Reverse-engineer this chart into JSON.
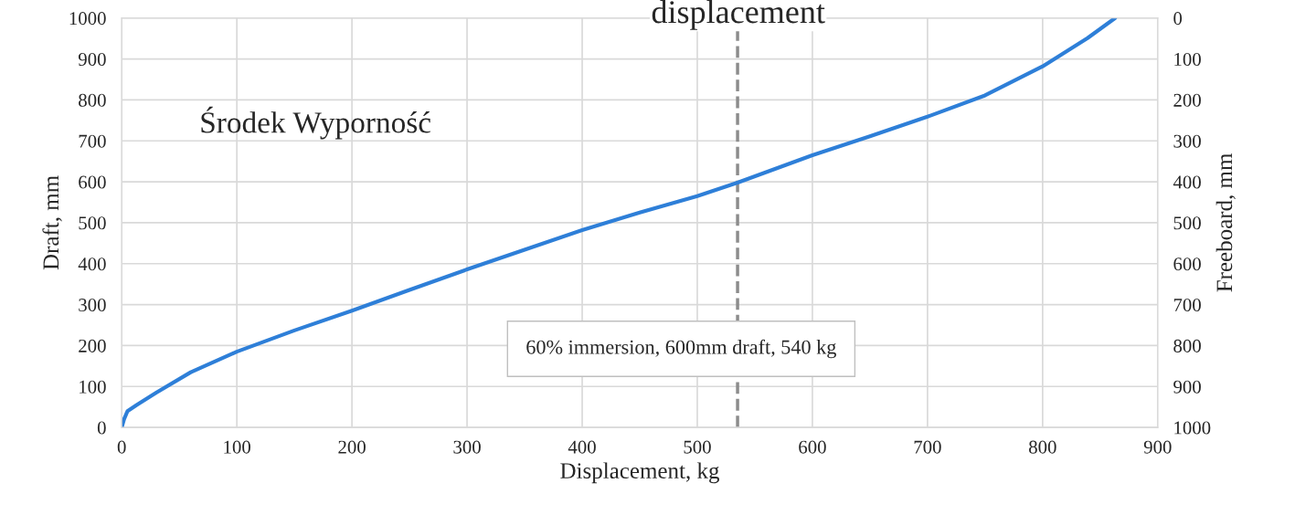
{
  "chart_data": {
    "type": "line",
    "title": "displacement",
    "xlabel": "Displacement, kg",
    "ylabel": "Draft, mm",
    "y2label": "Freeboard, mm",
    "series": [
      {
        "color": "#2e7fd8",
        "x": [
          0,
          2,
          5,
          13,
          30,
          60,
          100,
          150,
          200,
          250,
          300,
          350,
          400,
          450,
          500,
          535,
          600,
          650,
          700,
          750,
          800,
          839,
          863
        ],
        "values": [
          0,
          20,
          40,
          55,
          85,
          135,
          185,
          237,
          285,
          336,
          386,
          434,
          482,
          525,
          565,
          598,
          665,
          711,
          759,
          811,
          882,
          951,
          1000
        ]
      }
    ],
    "xlim": [
      0,
      900
    ],
    "xticks": [
      0,
      100,
      200,
      300,
      400,
      500,
      600,
      700,
      800,
      900
    ],
    "ylim": [
      0,
      1000
    ],
    "yticks": [
      0,
      100,
      200,
      300,
      400,
      500,
      600,
      700,
      800,
      900,
      1000
    ],
    "y2lim": [
      1000,
      0
    ],
    "y2ticks": [
      0,
      100,
      200,
      300,
      400,
      500,
      600,
      700,
      800,
      900,
      1000
    ],
    "ref_lines": [
      {
        "axis": "x",
        "value": 535,
        "color": "#8c8c8c",
        "line_style": "dashed"
      }
    ],
    "annotations": [
      "Środek Wyporność",
      "60% immersion, 600mm draft, 540 kg"
    ],
    "grid": true,
    "line_style": "solid",
    "marker": "none"
  }
}
